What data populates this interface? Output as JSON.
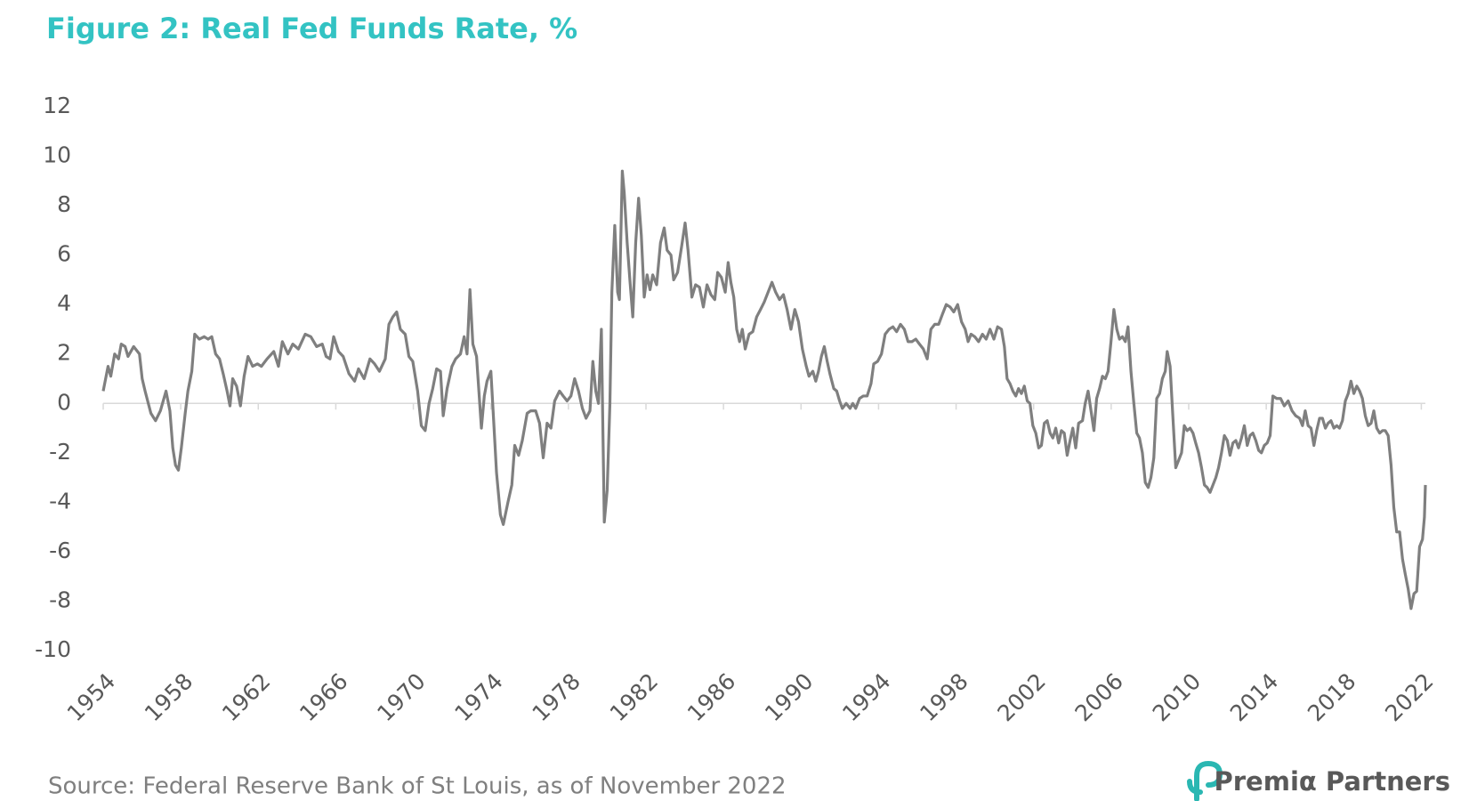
{
  "chart_data": {
    "type": "line",
    "title": "Figure 2: Real Fed Funds Rate, %",
    "source": "Source: Federal Reserve Bank of St Louis, as of November 2022",
    "logo": "Premiα Partners",
    "xlim": [
      1954,
      2022.21
    ],
    "xticks": [
      1954,
      1958,
      1962,
      1966,
      1970,
      1974,
      1978,
      1982,
      1986,
      1990,
      1994,
      1998,
      2002,
      2006,
      2010,
      2014,
      2018,
      2022
    ],
    "ylim": [
      -10,
      12
    ],
    "yticks": [
      -10,
      -8,
      -6,
      -4,
      -2,
      0,
      2,
      4,
      6,
      8,
      10,
      12
    ],
    "grid": false,
    "x": [
      1954.0,
      1954.25,
      1954.39,
      1954.59,
      1954.79,
      1954.93,
      1955.13,
      1955.28,
      1955.57,
      1955.87,
      1956.01,
      1956.16,
      1956.46,
      1956.7,
      1956.95,
      1957.24,
      1957.44,
      1957.59,
      1957.73,
      1957.88,
      1958.03,
      1958.23,
      1958.37,
      1958.57,
      1958.72,
      1958.96,
      1959.21,
      1959.41,
      1959.6,
      1959.8,
      1960.0,
      1960.19,
      1960.39,
      1960.54,
      1960.68,
      1960.88,
      1961.08,
      1961.27,
      1961.47,
      1961.71,
      1961.96,
      1962.16,
      1962.45,
      1962.8,
      1963.04,
      1963.24,
      1963.53,
      1963.78,
      1964.07,
      1964.42,
      1964.71,
      1965.01,
      1965.3,
      1965.5,
      1965.7,
      1965.89,
      1966.14,
      1966.38,
      1966.68,
      1966.97,
      1967.17,
      1967.46,
      1967.76,
      1968.0,
      1968.25,
      1968.55,
      1968.74,
      1968.94,
      1969.14,
      1969.33,
      1969.58,
      1969.77,
      1969.97,
      1970.22,
      1970.41,
      1970.61,
      1970.81,
      1971.0,
      1971.2,
      1971.4,
      1971.54,
      1971.74,
      1971.99,
      1972.18,
      1972.43,
      1972.62,
      1972.77,
      1972.92,
      1973.07,
      1973.26,
      1973.51,
      1973.66,
      1973.8,
      1974.0,
      1974.15,
      1974.29,
      1974.49,
      1974.64,
      1974.88,
      1975.08,
      1975.23,
      1975.43,
      1975.62,
      1975.87,
      1976.06,
      1976.31,
      1976.51,
      1976.7,
      1976.9,
      1977.1,
      1977.29,
      1977.54,
      1977.73,
      1977.93,
      1978.13,
      1978.32,
      1978.52,
      1978.72,
      1978.91,
      1979.11,
      1979.26,
      1979.41,
      1979.55,
      1979.7,
      1979.85,
      1980.0,
      1980.14,
      1980.24,
      1980.39,
      1980.54,
      1980.63,
      1980.78,
      1980.88,
      1981.03,
      1981.17,
      1981.32,
      1981.47,
      1981.62,
      1981.76,
      1981.91,
      1982.06,
      1982.21,
      1982.35,
      1982.55,
      1982.75,
      1982.94,
      1983.09,
      1983.29,
      1983.43,
      1983.63,
      1983.83,
      1984.02,
      1984.17,
      1984.37,
      1984.56,
      1984.76,
      1984.96,
      1985.15,
      1985.35,
      1985.55,
      1985.7,
      1985.89,
      1986.09,
      1986.24,
      1986.38,
      1986.53,
      1986.68,
      1986.83,
      1986.97,
      1987.12,
      1987.32,
      1987.51,
      1987.71,
      1987.91,
      1988.1,
      1988.3,
      1988.5,
      1988.69,
      1988.89,
      1989.09,
      1989.28,
      1989.48,
      1989.68,
      1989.87,
      1990.07,
      1990.27,
      1990.41,
      1990.61,
      1990.76,
      1990.9,
      1991.05,
      1991.2,
      1991.35,
      1991.49,
      1991.69,
      1991.84,
      1991.99,
      1992.13,
      1992.33,
      1992.53,
      1992.67,
      1992.82,
      1993.02,
      1993.21,
      1993.41,
      1993.61,
      1993.75,
      1993.95,
      1994.15,
      1994.34,
      1994.54,
      1994.74,
      1994.93,
      1995.13,
      1995.33,
      1995.52,
      1995.72,
      1995.92,
      1996.11,
      1996.31,
      1996.51,
      1996.7,
      1996.9,
      1997.1,
      1997.29,
      1997.49,
      1997.69,
      1997.88,
      1998.08,
      1998.28,
      1998.47,
      1998.62,
      1998.77,
      1998.96,
      1999.16,
      1999.36,
      1999.55,
      1999.75,
      1999.95,
      2000.14,
      2000.34,
      2000.49,
      2000.63,
      2000.78,
      2000.93,
      2001.08,
      2001.22,
      2001.37,
      2001.52,
      2001.67,
      2001.81,
      2001.96,
      2002.11,
      2002.26,
      2002.4,
      2002.55,
      2002.7,
      2002.85,
      2002.99,
      2003.14,
      2003.29,
      2003.43,
      2003.58,
      2003.73,
      2003.88,
      2004.02,
      2004.17,
      2004.32,
      2004.52,
      2004.66,
      2004.81,
      2004.96,
      2005.11,
      2005.25,
      2005.4,
      2005.55,
      2005.7,
      2005.84,
      2005.99,
      2006.14,
      2006.29,
      2006.43,
      2006.58,
      2006.73,
      2006.87,
      2007.02,
      2007.17,
      2007.32,
      2007.46,
      2007.61,
      2007.76,
      2007.91,
      2008.05,
      2008.2,
      2008.35,
      2008.5,
      2008.64,
      2008.79,
      2008.89,
      2009.04,
      2009.18,
      2009.33,
      2009.48,
      2009.63,
      2009.77,
      2009.92,
      2010.07,
      2010.22,
      2010.36,
      2010.51,
      2010.66,
      2010.81,
      2010.95,
      2011.1,
      2011.25,
      2011.4,
      2011.54,
      2011.69,
      2011.84,
      2011.99,
      2012.13,
      2012.28,
      2012.43,
      2012.57,
      2012.72,
      2012.87,
      2013.02,
      2013.16,
      2013.31,
      2013.46,
      2013.61,
      2013.75,
      2013.9,
      2014.05,
      2014.2,
      2014.34,
      2014.54,
      2014.74,
      2014.93,
      2015.13,
      2015.33,
      2015.52,
      2015.72,
      2015.87,
      2016.01,
      2016.16,
      2016.31,
      2016.46,
      2016.6,
      2016.75,
      2016.9,
      2017.05,
      2017.19,
      2017.34,
      2017.49,
      2017.64,
      2017.78,
      2017.93,
      2018.08,
      2018.23,
      2018.37,
      2018.52,
      2018.67,
      2018.82,
      2018.96,
      2019.11,
      2019.26,
      2019.41,
      2019.55,
      2019.7,
      2019.85,
      2020.0,
      2020.14,
      2020.29,
      2020.44,
      2020.58,
      2020.73,
      2020.88,
      2021.03,
      2021.17,
      2021.32,
      2021.47,
      2021.62,
      2021.76,
      2021.91,
      2022.06,
      2022.16,
      2022.21
    ],
    "series": [
      {
        "color": "#7f7f7f",
        "values": [
          0.5,
          1.5,
          1.1,
          2.0,
          1.8,
          2.4,
          2.3,
          1.9,
          2.3,
          2.0,
          1.0,
          0.5,
          -0.4,
          -0.7,
          -0.3,
          0.5,
          -0.3,
          -1.8,
          -2.5,
          -2.7,
          -1.8,
          -0.4,
          0.5,
          1.3,
          2.8,
          2.6,
          2.7,
          2.6,
          2.7,
          2.0,
          1.8,
          1.2,
          0.5,
          -0.1,
          1.0,
          0.7,
          -0.1,
          1.1,
          1.9,
          1.5,
          1.6,
          1.5,
          1.8,
          2.1,
          1.5,
          2.5,
          2.0,
          2.4,
          2.2,
          2.8,
          2.7,
          2.3,
          2.4,
          1.9,
          1.8,
          2.7,
          2.1,
          1.9,
          1.2,
          0.9,
          1.4,
          1.0,
          1.8,
          1.6,
          1.3,
          1.8,
          3.2,
          3.5,
          3.7,
          3.0,
          2.8,
          1.9,
          1.7,
          0.5,
          -0.9,
          -1.1,
          0.0,
          0.6,
          1.4,
          1.3,
          -0.5,
          0.6,
          1.5,
          1.8,
          2.0,
          2.7,
          2.0,
          4.6,
          2.4,
          1.9,
          -1.0,
          0.3,
          0.9,
          1.3,
          -0.8,
          -2.8,
          -4.5,
          -4.9,
          -4.0,
          -3.3,
          -1.7,
          -2.1,
          -1.5,
          -0.4,
          -0.3,
          -0.3,
          -0.8,
          -2.2,
          -0.8,
          -1.0,
          0.1,
          0.5,
          0.3,
          0.1,
          0.3,
          1.0,
          0.5,
          -0.2,
          -0.6,
          -0.3,
          1.7,
          0.5,
          0.0,
          3.0,
          -4.8,
          -3.5,
          0.0,
          4.5,
          7.2,
          4.5,
          4.2,
          9.4,
          8.5,
          6.5,
          5.0,
          3.5,
          6.5,
          8.3,
          6.8,
          4.3,
          5.2,
          4.6,
          5.2,
          4.8,
          6.5,
          7.1,
          6.2,
          6.0,
          5.0,
          5.3,
          6.3,
          7.3,
          6.2,
          4.3,
          4.8,
          4.7,
          3.9,
          4.8,
          4.4,
          4.2,
          5.3,
          5.1,
          4.5,
          5.7,
          4.9,
          4.3,
          3.0,
          2.5,
          3.0,
          2.2,
          2.8,
          2.9,
          3.5,
          3.8,
          4.1,
          4.5,
          4.9,
          4.5,
          4.2,
          4.4,
          3.8,
          3.0,
          3.8,
          3.3,
          2.2,
          1.5,
          1.1,
          1.3,
          0.9,
          1.3,
          1.9,
          2.3,
          1.7,
          1.2,
          0.6,
          0.5,
          0.1,
          -0.2,
          0.0,
          -0.2,
          0.0,
          -0.2,
          0.2,
          0.3,
          0.3,
          0.8,
          1.6,
          1.7,
          2.0,
          2.8,
          3.0,
          3.1,
          2.9,
          3.2,
          3.0,
          2.5,
          2.5,
          2.6,
          2.4,
          2.2,
          1.8,
          3.0,
          3.2,
          3.2,
          3.6,
          4.0,
          3.9,
          3.7,
          4.0,
          3.3,
          3.0,
          2.5,
          2.8,
          2.7,
          2.5,
          2.8,
          2.6,
          3.0,
          2.6,
          3.1,
          3.0,
          2.3,
          1.0,
          0.8,
          0.5,
          0.3,
          0.6,
          0.4,
          0.7,
          0.1,
          0.0,
          -0.9,
          -1.2,
          -1.8,
          -1.7,
          -0.8,
          -0.7,
          -1.2,
          -1.4,
          -1.0,
          -1.6,
          -1.1,
          -1.2,
          -2.1,
          -1.5,
          -1.0,
          -1.8,
          -0.8,
          -0.7,
          0.0,
          0.5,
          -0.3,
          -1.1,
          0.2,
          0.6,
          1.1,
          1.0,
          1.3,
          2.5,
          3.8,
          3.0,
          2.6,
          2.7,
          2.5,
          3.1,
          1.3,
          0.0,
          -1.2,
          -1.4,
          -2.0,
          -3.2,
          -3.4,
          -3.0,
          -2.2,
          0.2,
          0.4,
          1.0,
          1.3,
          2.1,
          1.5,
          -0.5,
          -2.6,
          -2.3,
          -2.0,
          -0.9,
          -1.1,
          -1.0,
          -1.2,
          -1.6,
          -2.0,
          -2.6,
          -3.3,
          -3.4,
          -3.6,
          -3.3,
          -3.0,
          -2.6,
          -2.0,
          -1.3,
          -1.5,
          -2.1,
          -1.6,
          -1.5,
          -1.8,
          -1.4,
          -0.9,
          -1.7,
          -1.3,
          -1.2,
          -1.5,
          -1.9,
          -2.0,
          -1.7,
          -1.6,
          -1.3,
          0.3,
          0.2,
          0.2,
          -0.1,
          0.1,
          -0.3,
          -0.5,
          -0.6,
          -0.9,
          -0.3,
          -0.9,
          -1.0,
          -1.7,
          -1.1,
          -0.6,
          -0.6,
          -1.0,
          -0.8,
          -0.7,
          -1.0,
          -0.9,
          -1.0,
          -0.7,
          0.1,
          0.4,
          0.9,
          0.4,
          0.7,
          0.5,
          0.2,
          -0.5,
          -0.9,
          -0.8,
          -0.3,
          -1.0,
          -1.2,
          -1.1,
          -1.1,
          -1.3,
          -2.5,
          -4.2,
          -5.2,
          -5.2,
          -6.3,
          -6.9,
          -7.5,
          -8.3,
          -7.7,
          -7.6,
          -5.8,
          -5.5,
          -4.6,
          -3.3
        ]
      }
    ]
  }
}
